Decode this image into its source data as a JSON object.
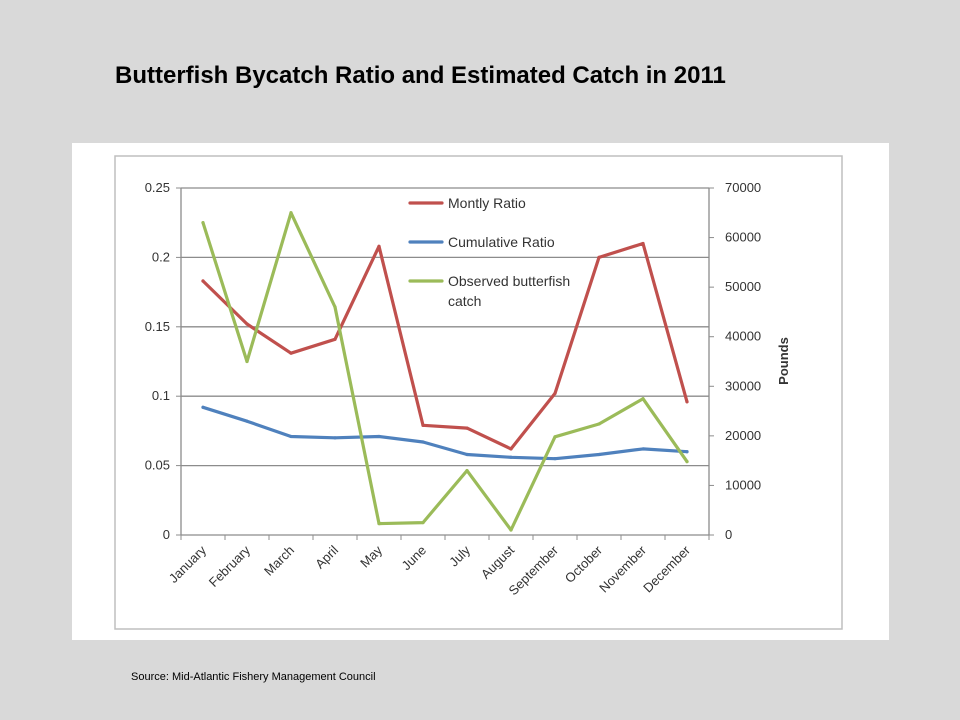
{
  "slide": {
    "title": "Butterfish Bycatch Ratio and Estimated Catch in 2011",
    "source": "Source: Mid-Atlantic Fishery Management Council"
  },
  "chart_data": {
    "type": "line",
    "title": "",
    "xlabel": "",
    "ylabel": "",
    "y2label": "Pounds",
    "categories": [
      "January",
      "February",
      "March",
      "April",
      "May",
      "June",
      "July",
      "August",
      "September",
      "October",
      "November",
      "December"
    ],
    "ylim": [
      0,
      0.25
    ],
    "y2lim": [
      0,
      70000
    ],
    "y_ticks": [
      "0",
      "0.05",
      "0.1",
      "0.15",
      "0.2",
      "0.25"
    ],
    "y2_ticks": [
      "0",
      "10000",
      "20000",
      "30000",
      "40000",
      "50000",
      "60000",
      "70000"
    ],
    "grid": true,
    "legend_position": "top-right",
    "series": [
      {
        "name": "Montly Ratio",
        "axis": "left",
        "color": "#c0504d",
        "values": [
          0.183,
          0.152,
          0.131,
          0.141,
          0.208,
          0.079,
          0.077,
          0.062,
          0.102,
          0.2,
          0.21,
          0.096
        ]
      },
      {
        "name": "Cumulative Ratio",
        "axis": "left",
        "color": "#4f81bd",
        "values": [
          0.092,
          0.082,
          0.071,
          0.07,
          0.071,
          0.067,
          0.058,
          0.056,
          0.055,
          0.058,
          0.062,
          0.06
        ]
      },
      {
        "name": "Observed butterfish catch",
        "axis": "right",
        "color": "#9bbb59",
        "values": [
          63000,
          35000,
          65000,
          46000,
          2300,
          2500,
          13000,
          1000,
          19800,
          22400,
          27500,
          14800
        ]
      }
    ]
  }
}
